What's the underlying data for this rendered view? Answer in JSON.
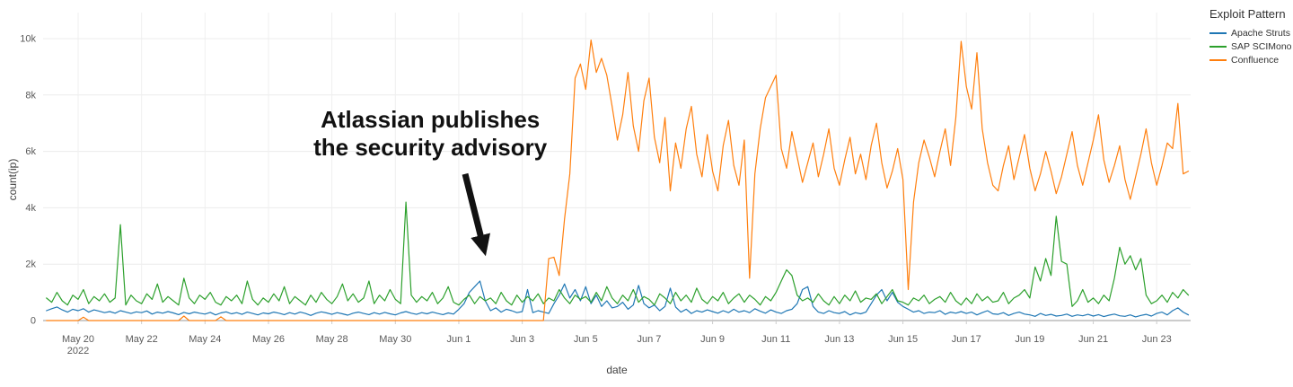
{
  "page": {
    "background": "#ffffff"
  },
  "chart_data": {
    "type": "line",
    "xlabel": "date",
    "ylabel": "count(ip)",
    "ylim": [
      0,
      10000
    ],
    "grid": true,
    "x_start_date": "2022-05-19",
    "samples_per_day": 6,
    "legend": {
      "title": "Exploit Pattern",
      "position": "top-right"
    },
    "y_ticks": [
      {
        "label": "0",
        "value": 0
      },
      {
        "label": "2k",
        "value": 2000
      },
      {
        "label": "4k",
        "value": 4000
      },
      {
        "label": "6k",
        "value": 6000
      },
      {
        "label": "8k",
        "value": 8000
      },
      {
        "label": "10k",
        "value": 10000
      }
    ],
    "x_ticks": [
      {
        "label": "May 20",
        "sublabel": "2022",
        "day": 1
      },
      {
        "label": "May 22",
        "day": 3
      },
      {
        "label": "May 24",
        "day": 5
      },
      {
        "label": "May 26",
        "day": 7
      },
      {
        "label": "May 28",
        "day": 9
      },
      {
        "label": "May 30",
        "day": 11
      },
      {
        "label": "Jun 1",
        "day": 13
      },
      {
        "label": "Jun 3",
        "day": 15
      },
      {
        "label": "Jun 5",
        "day": 17
      },
      {
        "label": "Jun 7",
        "day": 19
      },
      {
        "label": "Jun 9",
        "day": 21
      },
      {
        "label": "Jun 11",
        "day": 23
      },
      {
        "label": "Jun 13",
        "day": 25
      },
      {
        "label": "Jun 15",
        "day": 27
      },
      {
        "label": "Jun 17",
        "day": 29
      },
      {
        "label": "Jun 19",
        "day": 31
      },
      {
        "label": "Jun 21",
        "day": 33
      },
      {
        "label": "Jun 23",
        "day": 35
      }
    ],
    "series": [
      {
        "name": "Apache Struts",
        "color": "#1f77b4",
        "values": [
          350,
          420,
          480,
          380,
          300,
          400,
          350,
          420,
          300,
          380,
          330,
          280,
          320,
          260,
          350,
          300,
          250,
          310,
          280,
          340,
          230,
          300,
          260,
          320,
          270,
          210,
          290,
          240,
          300,
          260,
          230,
          290,
          200,
          270,
          310,
          240,
          280,
          220,
          300,
          250,
          200,
          270,
          240,
          300,
          260,
          210,
          280,
          230,
          300,
          250,
          180,
          260,
          310,
          270,
          220,
          280,
          240,
          190,
          260,
          300,
          250,
          210,
          280,
          230,
          290,
          240,
          200,
          270,
          320,
          260,
          220,
          280,
          240,
          300,
          250,
          210,
          270,
          230,
          400,
          600,
          1000,
          1200,
          1400,
          700,
          350,
          450,
          300,
          400,
          350,
          280,
          320,
          1100,
          280,
          350,
          300,
          250,
          600,
          900,
          1300,
          800,
          1100,
          700,
          1200,
          600,
          900,
          500,
          700,
          450,
          500,
          650,
          400,
          550,
          1250,
          600,
          450,
          550,
          350,
          500,
          1150,
          480,
          300,
          400,
          250,
          350,
          300,
          380,
          320,
          260,
          350,
          280,
          400,
          300,
          350,
          280,
          420,
          330,
          260,
          380,
          300,
          250,
          350,
          400,
          600,
          1100,
          1200,
          500,
          300,
          250,
          350,
          280,
          250,
          320,
          200,
          280,
          240,
          300,
          600,
          900,
          1100,
          700,
          1000,
          650,
          500,
          400,
          300,
          350,
          250,
          300,
          280,
          350,
          220,
          300,
          260,
          320,
          250,
          300,
          200,
          280,
          350,
          240,
          220,
          280,
          180,
          250,
          300,
          230,
          200,
          150,
          250,
          180,
          220,
          160,
          180,
          230,
          150,
          200,
          170,
          220,
          160,
          210,
          140,
          190,
          230,
          170,
          150,
          200,
          130,
          180,
          220,
          160,
          250,
          300,
          200,
          350,
          450,
          300,
          200
        ]
      },
      {
        "name": "SAP SCIMono",
        "color": "#2ca02c",
        "values": [
          800,
          650,
          1000,
          700,
          550,
          900,
          750,
          1100,
          600,
          850,
          700,
          950,
          650,
          800,
          3400,
          550,
          900,
          700,
          600,
          950,
          750,
          1300,
          650,
          850,
          700,
          550,
          1500,
          800,
          600,
          900,
          750,
          1000,
          650,
          550,
          850,
          700,
          900,
          600,
          1400,
          750,
          550,
          800,
          650,
          950,
          700,
          1200,
          600,
          850,
          700,
          550,
          900,
          650,
          1000,
          750,
          600,
          850,
          1300,
          700,
          950,
          650,
          800,
          1400,
          600,
          900,
          700,
          1100,
          750,
          600,
          4200,
          900,
          650,
          850,
          700,
          1000,
          600,
          800,
          1200,
          650,
          550,
          750,
          900,
          600,
          850,
          700,
          800,
          600,
          1000,
          700,
          550,
          900,
          650,
          850,
          700,
          950,
          600,
          800,
          700,
          1100,
          800,
          600,
          900,
          750,
          850,
          650,
          1000,
          700,
          1200,
          800,
          600,
          900,
          700,
          1100,
          650,
          850,
          750,
          550,
          950,
          800,
          600,
          1000,
          700,
          900,
          650,
          1150,
          750,
          600,
          850,
          700,
          1000,
          600,
          800,
          950,
          650,
          900,
          750,
          550,
          850,
          700,
          1000,
          1400,
          1800,
          1600,
          900,
          700,
          800,
          650,
          950,
          700,
          550,
          850,
          600,
          900,
          700,
          1050,
          650,
          800,
          750,
          950,
          600,
          850,
          1100,
          700,
          650,
          550,
          800,
          700,
          900,
          600,
          750,
          850,
          650,
          1000,
          700,
          550,
          800,
          600,
          950,
          700,
          850,
          650,
          700,
          1000,
          600,
          800,
          900,
          1100,
          800,
          1900,
          1400,
          2200,
          1600,
          3700,
          2100,
          2000,
          500,
          700,
          1100,
          650,
          800,
          600,
          900,
          700,
          1500,
          2600,
          2000,
          2300,
          1800,
          2200,
          900,
          600,
          700,
          900,
          650,
          1000,
          800,
          1100,
          900
        ]
      },
      {
        "name": "Confluence",
        "color": "#ff7f0e",
        "values": [
          0,
          0,
          0,
          0,
          0,
          0,
          0,
          120,
          0,
          0,
          0,
          0,
          0,
          0,
          0,
          0,
          0,
          0,
          0,
          0,
          0,
          0,
          0,
          0,
          0,
          0,
          160,
          0,
          0,
          0,
          0,
          0,
          0,
          130,
          0,
          0,
          0,
          0,
          0,
          0,
          0,
          0,
          0,
          0,
          0,
          0,
          0,
          0,
          0,
          0,
          0,
          0,
          0,
          0,
          0,
          0,
          0,
          0,
          0,
          0,
          0,
          0,
          0,
          0,
          0,
          0,
          0,
          0,
          0,
          0,
          0,
          0,
          0,
          0,
          0,
          0,
          0,
          0,
          0,
          0,
          0,
          0,
          0,
          0,
          0,
          0,
          0,
          0,
          0,
          0,
          0,
          0,
          0,
          0,
          0,
          2200,
          2250,
          1600,
          3600,
          5200,
          8600,
          9100,
          8200,
          9950,
          8800,
          9300,
          8700,
          7600,
          6400,
          7300,
          8800,
          6900,
          6000,
          7800,
          8600,
          6500,
          5600,
          7200,
          4600,
          6300,
          5400,
          6800,
          7600,
          5900,
          5100,
          6600,
          5300,
          4600,
          6200,
          7100,
          5500,
          4800,
          6400,
          1500,
          5200,
          6800,
          7900,
          8300,
          8700,
          6100,
          5400,
          6700,
          5800,
          4900,
          5600,
          6300,
          5100,
          5900,
          6800,
          5400,
          4800,
          5700,
          6500,
          5200,
          5900,
          5000,
          6200,
          7000,
          5600,
          4700,
          5300,
          6100,
          5000,
          1100,
          4200,
          5600,
          6400,
          5800,
          5100,
          6000,
          6800,
          5500,
          7200,
          9900,
          8300,
          7500,
          9500,
          6800,
          5600,
          4800,
          4600,
          5500,
          6200,
          5000,
          5800,
          6600,
          5400,
          4600,
          5200,
          6000,
          5300,
          4500,
          5100,
          5900,
          6700,
          5500,
          4800,
          5600,
          6400,
          7300,
          5700,
          4900,
          5500,
          6200,
          5000,
          4300,
          5100,
          5900,
          6800,
          5600,
          4800,
          5500,
          6300,
          6100,
          7700,
          5200,
          5300
        ]
      }
    ],
    "annotation": {
      "lines": [
        "Atlassian publishes",
        "the security advisory"
      ],
      "color": "#111111",
      "text_anchor": {
        "day": 12.1,
        "value": 7000
      },
      "arrow": {
        "from": {
          "day": 13.2,
          "value": 5200
        },
        "to": {
          "day": 13.8,
          "value": 2500
        }
      }
    }
  }
}
